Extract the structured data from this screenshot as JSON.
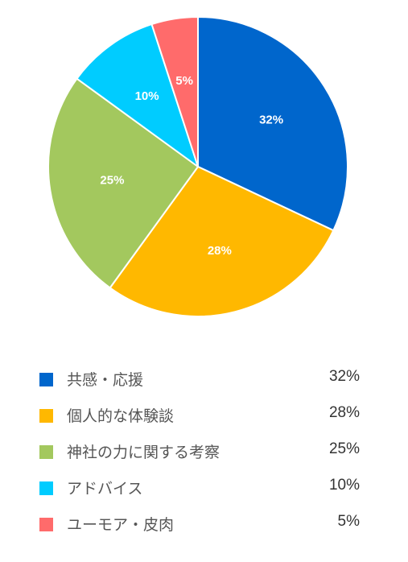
{
  "chart_data": {
    "type": "pie",
    "categories": [
      "共感・応援",
      "個人的な体験談",
      "神社の力に関する考察",
      "アドバイス",
      "ユーモア・皮肉"
    ],
    "values": [
      32,
      28,
      25,
      10,
      5
    ],
    "value_labels": [
      "32%",
      "28%",
      "25%",
      "10%",
      "5%"
    ],
    "colors": [
      "#0066cc",
      "#ffb800",
      "#a3c85e",
      "#00ccff",
      "#ff6b6b"
    ],
    "start_angle_deg": 0,
    "direction": "clockwise",
    "legend_position": "bottom"
  }
}
